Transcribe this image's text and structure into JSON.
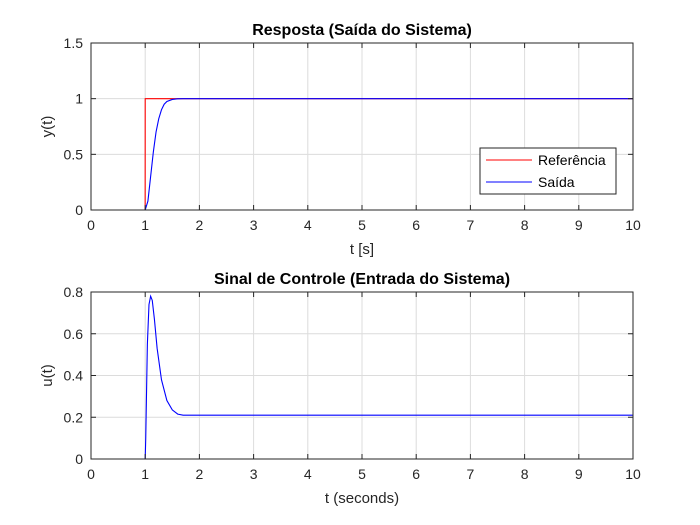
{
  "chart_data": [
    {
      "type": "line",
      "title": "Resposta (Saída do Sistema)",
      "xlabel": "t [s]",
      "ylabel": "y(t)",
      "xlim": [
        0,
        10
      ],
      "ylim": [
        0,
        1.5
      ],
      "xticks": [
        0,
        1,
        2,
        3,
        4,
        5,
        6,
        7,
        8,
        9,
        10
      ],
      "yticks": [
        0,
        0.5,
        1,
        1.5
      ],
      "grid": true,
      "legend_position": "lower-right",
      "series": [
        {
          "name": "Referência",
          "color": "#ff0000",
          "x": [
            0,
            0.999,
            1.0,
            10
          ],
          "y": [
            0,
            0,
            1,
            1
          ]
        },
        {
          "name": "Saída",
          "color": "#0000ff",
          "x": [
            0,
            1.0,
            1.05,
            1.1,
            1.15,
            1.2,
            1.25,
            1.3,
            1.35,
            1.4,
            1.5,
            1.6,
            1.7,
            1.8,
            2.0,
            10
          ],
          "y": [
            0,
            0,
            0.08,
            0.3,
            0.52,
            0.7,
            0.82,
            0.9,
            0.95,
            0.975,
            0.993,
            0.999,
            1.0,
            1.0,
            1.0,
            1.0
          ]
        }
      ]
    },
    {
      "type": "line",
      "title": "Sinal de Controle (Entrada do Sistema)",
      "xlabel": "t (seconds)",
      "ylabel": "u(t)",
      "xlim": [
        0,
        10
      ],
      "ylim": [
        0,
        0.8
      ],
      "xticks": [
        0,
        1,
        2,
        3,
        4,
        5,
        6,
        7,
        8,
        9,
        10
      ],
      "yticks": [
        0,
        0.2,
        0.4,
        0.6,
        0.8
      ],
      "grid": true,
      "series": [
        {
          "name": "",
          "color": "#0000ff",
          "x": [
            0,
            1.0,
            1.01,
            1.04,
            1.07,
            1.1,
            1.13,
            1.17,
            1.22,
            1.3,
            1.4,
            1.5,
            1.6,
            1.7,
            1.8,
            2.0,
            10
          ],
          "y": [
            0,
            0,
            0.1,
            0.55,
            0.74,
            0.78,
            0.76,
            0.67,
            0.53,
            0.38,
            0.28,
            0.235,
            0.215,
            0.21,
            0.21,
            0.21,
            0.21
          ]
        }
      ]
    }
  ]
}
